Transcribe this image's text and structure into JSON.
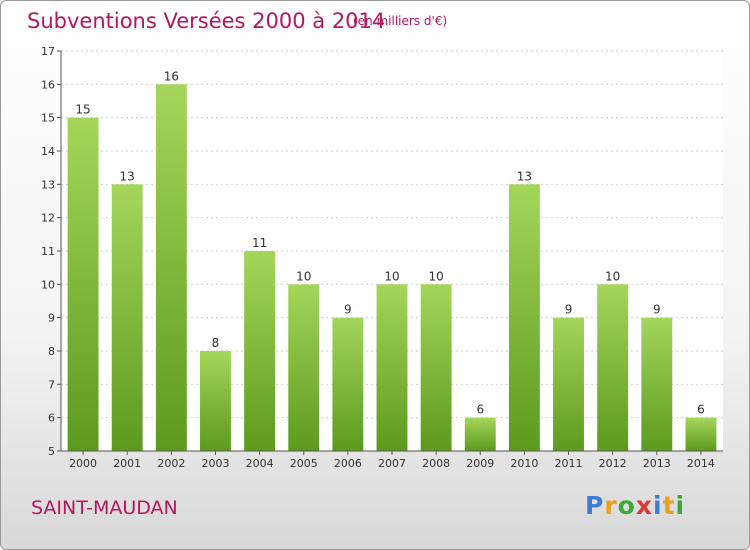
{
  "title": "Subventions Versées 2000 à 2014",
  "unit": "(en milliers d'€)",
  "commune": "SAINT-MAUDAN",
  "logo": {
    "letters": [
      "P",
      "r",
      "o",
      "x",
      "i",
      "t",
      "i"
    ],
    "colors": [
      "#3a7fd5",
      "#e8a020",
      "#3aa83a",
      "#d83a3a",
      "#3a7fd5",
      "#e8a020",
      "#3aa83a"
    ]
  },
  "colors": {
    "accent": "#b5175f",
    "bar_top": "#a4d65a",
    "bar_bottom": "#5c9a1e"
  },
  "chart_data": {
    "type": "bar",
    "title": "Subventions Versées 2000 à 2014",
    "subtitle": "(en milliers d'€)",
    "categories": [
      "2000",
      "2001",
      "2002",
      "2003",
      "2004",
      "2005",
      "2006",
      "2007",
      "2008",
      "2009",
      "2010",
      "2011",
      "2012",
      "2013",
      "2014"
    ],
    "values": [
      15,
      13,
      16,
      8,
      11,
      10,
      9,
      10,
      10,
      6,
      13,
      9,
      10,
      9,
      6
    ],
    "ylim": [
      5,
      17
    ],
    "yticks": [
      5,
      6,
      7,
      8,
      9,
      10,
      11,
      12,
      13,
      14,
      15,
      16,
      17
    ],
    "grid": true,
    "xlabel": "",
    "ylabel": ""
  }
}
